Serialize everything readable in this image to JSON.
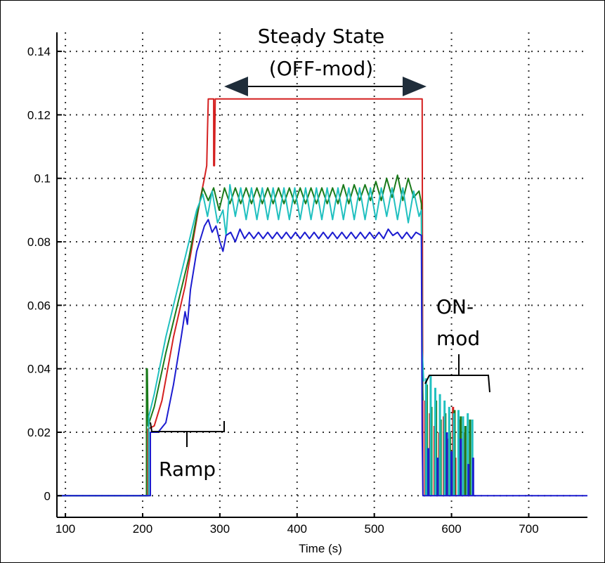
{
  "chart_data": {
    "type": "line",
    "title": "",
    "xlabel": "Time (s)",
    "ylabel": "",
    "xlim": [
      89,
      776
    ],
    "ylim": [
      -0.0068,
      0.146
    ],
    "xticks": [
      100,
      200,
      300,
      400,
      500,
      600,
      700
    ],
    "yticks": [
      0,
      0.02,
      0.04,
      0.06,
      0.08,
      0.1,
      0.12,
      0.14
    ],
    "ytick_labels": [
      "0",
      "0.02",
      "0.04",
      "0.06",
      "0.08",
      "0.1",
      "0.12",
      "0.14"
    ],
    "grid": true,
    "legend": "none",
    "series": [
      {
        "color": "#d42020",
        "points": [
          [
            89,
            0
          ],
          [
            207,
            0
          ],
          [
            207,
            0.021
          ],
          [
            215,
            0.022
          ],
          [
            225,
            0.03
          ],
          [
            240,
            0.05
          ],
          [
            255,
            0.066
          ],
          [
            265,
            0.08
          ],
          [
            275,
            0.094
          ],
          [
            280,
            0.1
          ],
          [
            283,
            0.104
          ],
          [
            284,
            0.115
          ],
          [
            285,
            0.125
          ],
          [
            290,
            0.125
          ],
          [
            292,
            0.125
          ],
          [
            292,
            0.104
          ],
          [
            293,
            0.104
          ],
          [
            294,
            0.125
          ],
          [
            562,
            0.125
          ],
          [
            563,
            0.0
          ]
        ],
        "bursts": [
          [
            566,
            0.03
          ],
          [
            572,
            0.026
          ],
          [
            578,
            0.022
          ],
          [
            584,
            0.02
          ],
          [
            590,
            0.025
          ],
          [
            596,
            0.018
          ],
          [
            602,
            0.028
          ],
          [
            605,
            0.012
          ],
          [
            610,
            0.024
          ],
          [
            616,
            0.02
          ]
        ]
      },
      {
        "color": "#1a7a1a",
        "points": [
          [
            89,
            0
          ],
          [
            205,
            0
          ],
          [
            205,
            0.04
          ],
          [
            206,
            0.04
          ],
          [
            207,
            0.022
          ],
          [
            215,
            0.028
          ],
          [
            230,
            0.045
          ],
          [
            245,
            0.06
          ],
          [
            260,
            0.075
          ],
          [
            270,
            0.088
          ],
          [
            278,
            0.097
          ],
          [
            285,
            0.093
          ],
          [
            292,
            0.097
          ],
          [
            299,
            0.09
          ],
          [
            306,
            0.097
          ],
          [
            313,
            0.092
          ],
          [
            320,
            0.097
          ],
          [
            327,
            0.092
          ],
          [
            334,
            0.097
          ],
          [
            341,
            0.092
          ],
          [
            348,
            0.097
          ],
          [
            355,
            0.092
          ],
          [
            362,
            0.097
          ],
          [
            369,
            0.092
          ],
          [
            376,
            0.097
          ],
          [
            383,
            0.092
          ],
          [
            390,
            0.097
          ],
          [
            397,
            0.092
          ],
          [
            404,
            0.097
          ],
          [
            411,
            0.092
          ],
          [
            418,
            0.097
          ],
          [
            425,
            0.092
          ],
          [
            432,
            0.097
          ],
          [
            439,
            0.092
          ],
          [
            446,
            0.097
          ],
          [
            453,
            0.092
          ],
          [
            460,
            0.098
          ],
          [
            467,
            0.092
          ],
          [
            474,
            0.098
          ],
          [
            481,
            0.093
          ],
          [
            488,
            0.098
          ],
          [
            495,
            0.093
          ],
          [
            502,
            0.099
          ],
          [
            509,
            0.093
          ],
          [
            516,
            0.1
          ],
          [
            523,
            0.094
          ],
          [
            530,
            0.101
          ],
          [
            537,
            0.093
          ],
          [
            544,
            0.1
          ],
          [
            551,
            0.094
          ],
          [
            558,
            0.096
          ],
          [
            561,
            0.092
          ],
          [
            562,
            0.04
          ],
          [
            563,
            0.03
          ]
        ],
        "bursts": [
          [
            568,
            0.035
          ],
          [
            574,
            0.028
          ],
          [
            580,
            0.03
          ],
          [
            586,
            0.024
          ],
          [
            592,
            0.026
          ],
          [
            598,
            0.02
          ],
          [
            604,
            0.027
          ],
          [
            612,
            0.025
          ],
          [
            618,
            0.022
          ],
          [
            624,
            0.024
          ]
        ]
      },
      {
        "color": "#20c0c0",
        "points": [
          [
            89,
            0
          ],
          [
            208,
            0
          ],
          [
            208,
            0.025
          ],
          [
            215,
            0.032
          ],
          [
            230,
            0.05
          ],
          [
            245,
            0.065
          ],
          [
            260,
            0.08
          ],
          [
            270,
            0.09
          ],
          [
            278,
            0.095
          ],
          [
            284,
            0.088
          ],
          [
            290,
            0.096
          ],
          [
            297,
            0.086
          ],
          [
            304,
            0.09
          ],
          [
            308,
            0.082
          ],
          [
            313,
            0.098
          ],
          [
            320,
            0.088
          ],
          [
            327,
            0.097
          ],
          [
            334,
            0.087
          ],
          [
            341,
            0.097
          ],
          [
            348,
            0.087
          ],
          [
            355,
            0.097
          ],
          [
            362,
            0.087
          ],
          [
            369,
            0.097
          ],
          [
            376,
            0.087
          ],
          [
            383,
            0.097
          ],
          [
            390,
            0.087
          ],
          [
            397,
            0.097
          ],
          [
            404,
            0.087
          ],
          [
            411,
            0.097
          ],
          [
            418,
            0.087
          ],
          [
            425,
            0.097
          ],
          [
            432,
            0.087
          ],
          [
            439,
            0.097
          ],
          [
            446,
            0.087
          ],
          [
            453,
            0.097
          ],
          [
            460,
            0.087
          ],
          [
            467,
            0.097
          ],
          [
            474,
            0.087
          ],
          [
            481,
            0.097
          ],
          [
            488,
            0.087
          ],
          [
            495,
            0.097
          ],
          [
            502,
            0.087
          ],
          [
            509,
            0.097
          ],
          [
            516,
            0.088
          ],
          [
            523,
            0.097
          ],
          [
            530,
            0.087
          ],
          [
            537,
            0.097
          ],
          [
            544,
            0.086
          ],
          [
            551,
            0.096
          ],
          [
            558,
            0.088
          ],
          [
            561,
            0.09
          ],
          [
            562,
            0.046
          ],
          [
            564,
            0.036
          ]
        ],
        "bursts": [
          [
            567,
            0.037
          ],
          [
            573,
            0.038
          ],
          [
            579,
            0.034
          ],
          [
            585,
            0.032
          ],
          [
            591,
            0.03
          ],
          [
            597,
            0.028
          ],
          [
            603,
            0.026
          ],
          [
            609,
            0.027
          ],
          [
            615,
            0.025
          ],
          [
            621,
            0.026
          ],
          [
            627,
            0.024
          ]
        ]
      },
      {
        "color": "#1c1cd0",
        "points": [
          [
            89,
            0
          ],
          [
            210,
            0
          ],
          [
            210,
            0.02
          ],
          [
            220,
            0.02
          ],
          [
            230,
            0.023
          ],
          [
            240,
            0.035
          ],
          [
            250,
            0.05
          ],
          [
            255,
            0.058
          ],
          [
            258,
            0.054
          ],
          [
            262,
            0.065
          ],
          [
            270,
            0.077
          ],
          [
            280,
            0.085
          ],
          [
            285,
            0.087
          ],
          [
            290,
            0.083
          ],
          [
            295,
            0.085
          ],
          [
            300,
            0.08
          ],
          [
            304,
            0.077
          ],
          [
            308,
            0.082
          ],
          [
            314,
            0.083
          ],
          [
            320,
            0.08
          ],
          [
            326,
            0.084
          ],
          [
            332,
            0.081
          ],
          [
            338,
            0.083
          ],
          [
            344,
            0.081
          ],
          [
            350,
            0.083
          ],
          [
            356,
            0.081
          ],
          [
            362,
            0.083
          ],
          [
            368,
            0.081
          ],
          [
            374,
            0.083
          ],
          [
            380,
            0.081
          ],
          [
            386,
            0.083
          ],
          [
            392,
            0.081
          ],
          [
            398,
            0.083
          ],
          [
            404,
            0.081
          ],
          [
            410,
            0.083
          ],
          [
            416,
            0.081
          ],
          [
            422,
            0.083
          ],
          [
            428,
            0.081
          ],
          [
            434,
            0.083
          ],
          [
            440,
            0.081
          ],
          [
            446,
            0.083
          ],
          [
            452,
            0.081
          ],
          [
            458,
            0.083
          ],
          [
            464,
            0.081
          ],
          [
            470,
            0.083
          ],
          [
            476,
            0.081
          ],
          [
            482,
            0.083
          ],
          [
            488,
            0.081
          ],
          [
            494,
            0.083
          ],
          [
            500,
            0.081
          ],
          [
            506,
            0.083
          ],
          [
            512,
            0.081
          ],
          [
            518,
            0.084
          ],
          [
            524,
            0.082
          ],
          [
            530,
            0.083
          ],
          [
            536,
            0.081
          ],
          [
            542,
            0.083
          ],
          [
            548,
            0.081
          ],
          [
            554,
            0.083
          ],
          [
            561,
            0.082
          ],
          [
            562,
            0.02
          ],
          [
            563,
            0
          ],
          [
            776,
            0
          ]
        ],
        "bursts": [
          [
            570,
            0.015
          ],
          [
            582,
            0.012
          ],
          [
            594,
            0.02
          ],
          [
            600,
            0.014
          ],
          [
            612,
            0.018
          ],
          [
            622,
            0.01
          ],
          [
            628,
            0.012
          ]
        ]
      }
    ],
    "annotations": [
      {
        "text_lines": [
          "Steady State",
          "(OFF-mod)"
        ],
        "type": "double-arrow",
        "x_range": [
          300,
          560
        ]
      },
      {
        "text_lines": [
          "Ramp"
        ],
        "type": "bracket",
        "x_range": [
          212,
          315
        ]
      },
      {
        "text_lines": [
          "ON-",
          "mod"
        ],
        "type": "bracket",
        "x_range": [
          565,
          655
        ]
      }
    ]
  }
}
